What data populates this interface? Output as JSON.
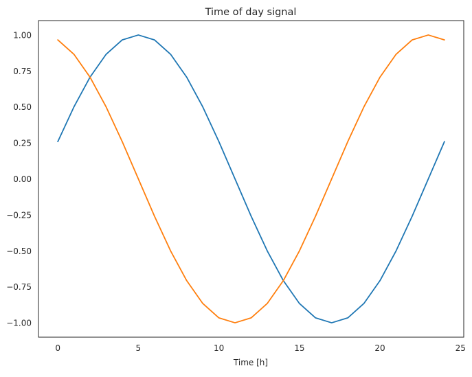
{
  "chart_data": {
    "type": "line",
    "title": "Time of day signal",
    "xlabel": "Time [h]",
    "ylabel": "",
    "xlim": [
      -1.2,
      25.2
    ],
    "ylim": [
      -1.1,
      1.1
    ],
    "xticks": [
      0,
      5,
      10,
      15,
      20,
      25
    ],
    "yticks": [
      1.0,
      0.75,
      0.5,
      0.25,
      0.0,
      -0.25,
      -0.5,
      -0.75,
      -1.0
    ],
    "xtick_labels": [
      "0",
      "5",
      "10",
      "15",
      "20",
      "25"
    ],
    "ytick_labels": [
      "1.00",
      "0.75",
      "0.50",
      "0.25",
      "0.00",
      "−0.25",
      "−0.50",
      "−0.75",
      "−1.00"
    ],
    "grid": false,
    "legend": "none",
    "x": [
      0,
      1,
      2,
      3,
      4,
      5,
      6,
      7,
      8,
      9,
      10,
      11,
      12,
      13,
      14,
      15,
      16,
      17,
      18,
      19,
      20,
      21,
      22,
      23,
      24
    ],
    "series": [
      {
        "color": "#1f77b4",
        "values": [
          0.259,
          0.5,
          0.707,
          0.866,
          0.966,
          1.0,
          0.966,
          0.866,
          0.707,
          0.5,
          0.259,
          0.0,
          -0.259,
          -0.5,
          -0.707,
          -0.866,
          -0.966,
          -1.0,
          -0.966,
          -0.866,
          -0.707,
          -0.5,
          -0.259,
          0.0,
          0.259
        ]
      },
      {
        "color": "#ff7f0e",
        "values": [
          0.966,
          0.866,
          0.707,
          0.5,
          0.259,
          0.0,
          -0.259,
          -0.5,
          -0.707,
          -0.866,
          -0.966,
          -1.0,
          -0.966,
          -0.866,
          -0.707,
          -0.5,
          -0.259,
          0.0,
          0.259,
          0.5,
          0.707,
          0.866,
          0.966,
          1.0,
          0.966
        ]
      }
    ]
  }
}
